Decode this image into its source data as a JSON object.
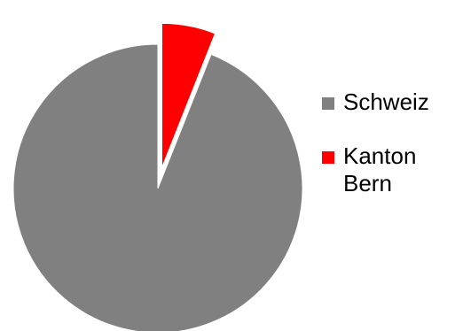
{
  "chart_data": {
    "type": "pie",
    "title": "",
    "series": [
      {
        "name": "",
        "slices": [
          {
            "label": "Schweiz",
            "value": 94,
            "color": "#808080",
            "exploded": false
          },
          {
            "label": "Kanton Bern",
            "value": 6,
            "color": "#ff0000",
            "exploded": true
          }
        ]
      }
    ],
    "start_angle_deg": 0,
    "direction": "counterclockwise",
    "legend": {
      "position": "right",
      "entries": [
        {
          "label": "Schweiz",
          "color": "#808080"
        },
        {
          "label": "Kanton Bern",
          "color": "#ff0000"
        }
      ]
    }
  }
}
